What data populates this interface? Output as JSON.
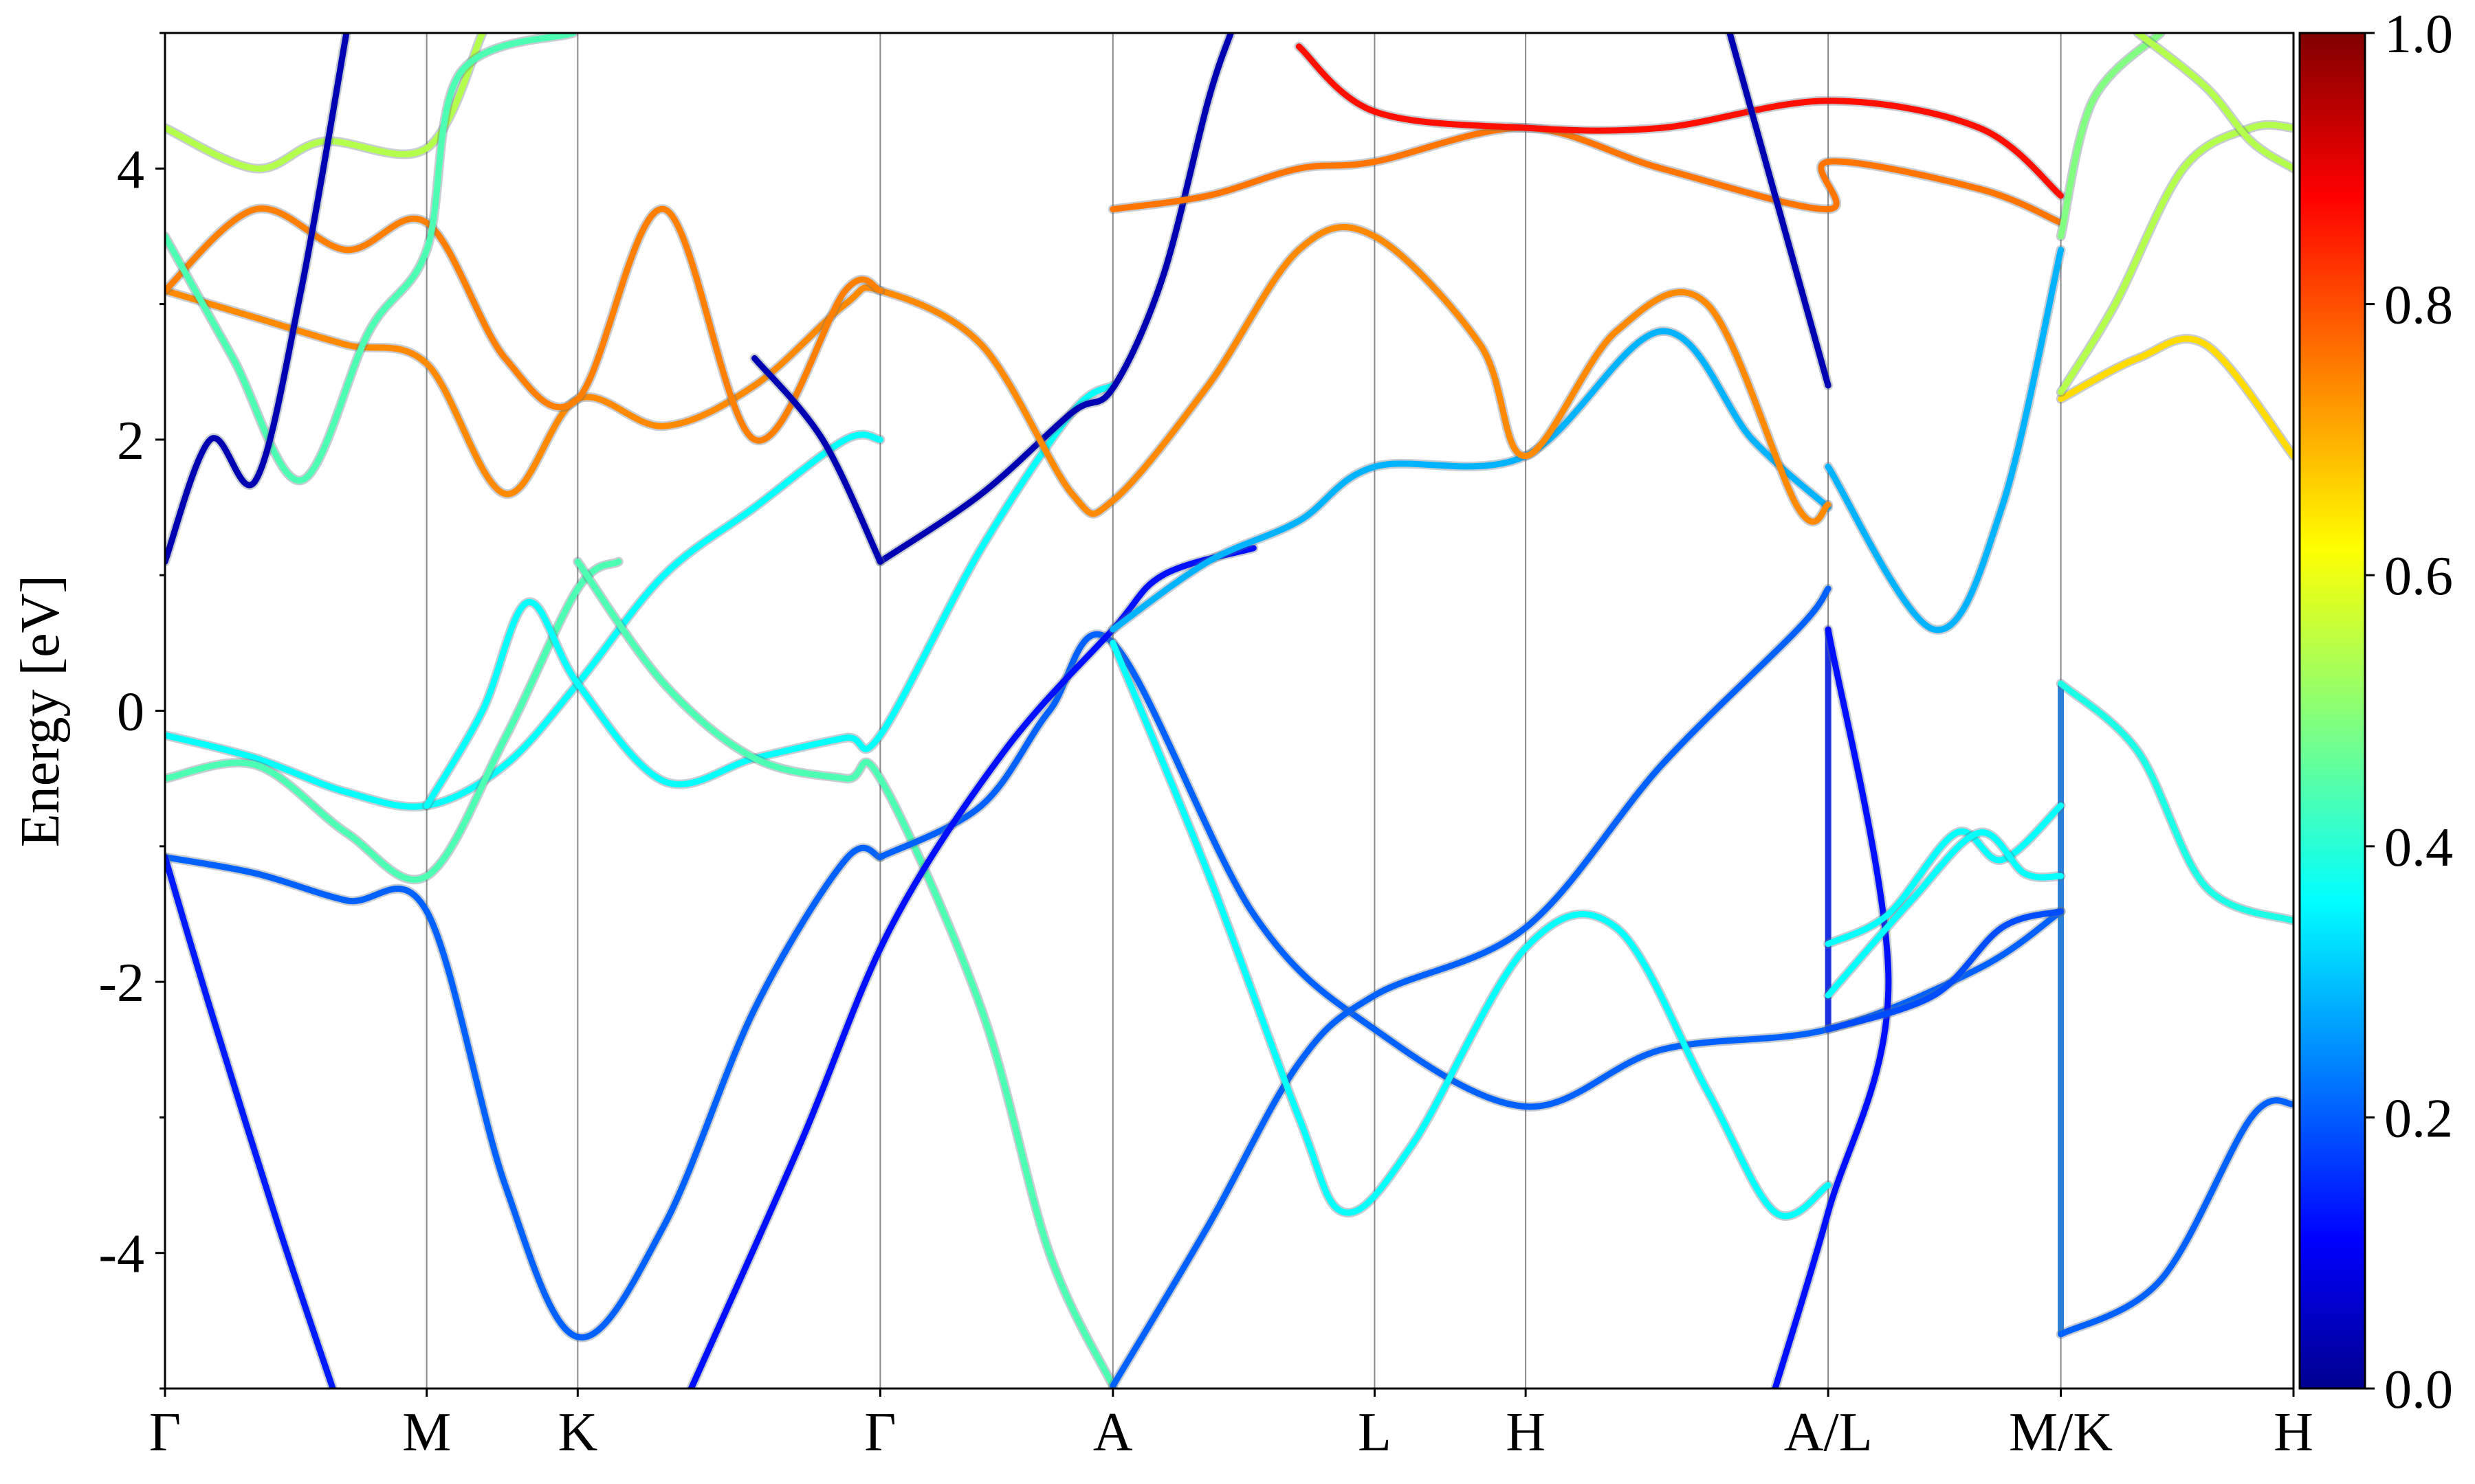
{
  "chart_data": {
    "type": "line",
    "title": "",
    "xlabel": "",
    "ylabel": "Energy [eV]",
    "ylim": [
      -5,
      5
    ],
    "grid": false,
    "legend": "none",
    "x_ticks": [
      {
        "label": "Γ",
        "x": 0.0
      },
      {
        "label": "M",
        "x": 0.577
      },
      {
        "label": "K",
        "x": 0.91
      },
      {
        "label": "Γ",
        "x": 1.577
      },
      {
        "label": "A",
        "x": 2.09
      },
      {
        "label": "L",
        "x": 2.667
      },
      {
        "label": "H",
        "x": 3.0
      },
      {
        "label": "A/L",
        "x": 3.667
      },
      {
        "label": "M/K",
        "x": 4.18
      },
      {
        "label": "H",
        "x": 4.693
      }
    ],
    "y_ticks": [
      -4,
      -2,
      0,
      2,
      4
    ],
    "colorbar": {
      "colormap": "jet",
      "range": [
        0.0,
        1.0
      ],
      "ticks": [
        "0.0",
        "0.2",
        "0.4",
        "0.6",
        "0.8",
        "1.0"
      ]
    },
    "series": [
      {
        "weight": 0.22,
        "points": [
          [
            0,
            -1.08
          ],
          [
            0.2,
            -1.2
          ],
          [
            0.4,
            -1.4
          ],
          [
            0.577,
            -1.48
          ],
          [
            0.75,
            -3.5
          ],
          [
            0.91,
            -4.62
          ],
          [
            1.1,
            -3.8
          ],
          [
            1.3,
            -2.2
          ],
          [
            1.5,
            -1.1
          ],
          [
            1.577,
            -1.08
          ]
        ]
      },
      {
        "weight": 0.15,
        "points": [
          [
            0,
            -1.08
          ],
          [
            0.1,
            -2.2
          ],
          [
            0.25,
            -3.8
          ],
          [
            0.37,
            -5.0
          ]
        ]
      },
      {
        "weight": 0.38,
        "points": [
          [
            0,
            -0.18
          ],
          [
            0.2,
            -0.35
          ],
          [
            0.4,
            -0.6
          ],
          [
            0.577,
            -0.7
          ],
          [
            0.75,
            -0.4
          ],
          [
            0.91,
            0.2
          ],
          [
            1.1,
            1.0
          ],
          [
            1.3,
            1.5
          ],
          [
            1.5,
            2.0
          ],
          [
            1.577,
            2.0
          ]
        ]
      },
      {
        "weight": 0.45,
        "points": [
          [
            0,
            -0.5
          ],
          [
            0.2,
            -0.4
          ],
          [
            0.4,
            -0.9
          ],
          [
            0.577,
            -1.22
          ],
          [
            0.75,
            -0.2
          ],
          [
            0.91,
            0.9
          ],
          [
            1.0,
            1.1
          ]
        ]
      },
      {
        "weight": 0.38,
        "points": [
          [
            0.577,
            -0.7
          ],
          [
            0.7,
            0.0
          ],
          [
            0.8,
            0.8
          ],
          [
            0.91,
            0.2
          ],
          [
            1.1,
            -0.52
          ],
          [
            1.3,
            -0.35
          ],
          [
            1.5,
            -0.2
          ],
          [
            1.577,
            -0.18
          ],
          [
            1.8,
            1.2
          ],
          [
            2.0,
            2.2
          ],
          [
            2.09,
            2.4
          ]
        ]
      },
      {
        "weight": 0.45,
        "points": [
          [
            0.91,
            1.1
          ],
          [
            1.1,
            0.2
          ],
          [
            1.3,
            -0.35
          ],
          [
            1.5,
            -0.5
          ],
          [
            1.577,
            -0.5
          ],
          [
            1.8,
            -2.2
          ],
          [
            1.95,
            -4.0
          ],
          [
            2.09,
            -4.98
          ]
        ]
      },
      {
        "weight": 0.22,
        "points": [
          [
            1.577,
            -1.08
          ],
          [
            1.8,
            -0.7
          ],
          [
            1.95,
            0.0
          ],
          [
            2.09,
            0.5
          ],
          [
            2.4,
            -1.5
          ],
          [
            2.667,
            -2.35
          ],
          [
            3.0,
            -2.92
          ],
          [
            3.3,
            -2.5
          ],
          [
            3.667,
            -2.35
          ],
          [
            4.0,
            -1.9
          ],
          [
            4.18,
            -1.48
          ]
        ]
      },
      {
        "weight": 0.14,
        "points": [
          [
            1.16,
            -5.0
          ],
          [
            1.4,
            -3.2
          ],
          [
            1.6,
            -1.6
          ],
          [
            1.85,
            -0.3
          ],
          [
            2.09,
            0.6
          ],
          [
            2.2,
            1.0
          ],
          [
            2.4,
            1.2
          ]
        ]
      },
      {
        "weight": 0.22,
        "points": [
          [
            2.09,
            -4.98
          ],
          [
            2.3,
            -3.8
          ],
          [
            2.5,
            -2.6
          ],
          [
            2.667,
            -2.1
          ],
          [
            3.0,
            -1.6
          ],
          [
            3.3,
            -0.4
          ],
          [
            3.6,
            0.6
          ],
          [
            3.667,
            0.9
          ]
        ]
      },
      {
        "weight": 0.38,
        "points": [
          [
            2.09,
            0.5
          ],
          [
            2.3,
            -1.2
          ],
          [
            2.5,
            -3.0
          ],
          [
            2.6,
            -3.7
          ],
          [
            2.75,
            -3.2
          ],
          [
            3.0,
            -1.75
          ],
          [
            3.2,
            -1.6
          ],
          [
            3.4,
            -2.8
          ],
          [
            3.55,
            -3.7
          ],
          [
            3.667,
            -3.5
          ]
        ]
      },
      {
        "weight": 0.3,
        "points": [
          [
            2.09,
            0.6
          ],
          [
            2.3,
            1.1
          ],
          [
            2.5,
            1.4
          ],
          [
            2.667,
            1.8
          ],
          [
            3.0,
            1.88
          ],
          [
            3.3,
            2.8
          ],
          [
            3.5,
            2.0
          ],
          [
            3.667,
            1.5
          ]
        ]
      },
      {
        "weight": 0.05,
        "points": [
          [
            1.577,
            1.1
          ],
          [
            1.8,
            1.6
          ],
          [
            2.0,
            2.2
          ],
          [
            2.09,
            2.38
          ],
          [
            2.2,
            3.2
          ],
          [
            2.3,
            4.5
          ],
          [
            2.35,
            5.0
          ]
        ]
      },
      {
        "weight": 0.74,
        "points": [
          [
            0,
            3.1
          ],
          [
            0.2,
            2.9
          ],
          [
            0.4,
            2.7
          ],
          [
            0.577,
            2.56
          ],
          [
            0.75,
            1.6
          ],
          [
            0.91,
            2.3
          ],
          [
            1.1,
            2.1
          ],
          [
            1.3,
            2.4
          ],
          [
            1.5,
            3.0
          ],
          [
            1.577,
            3.1
          ],
          [
            1.8,
            2.7
          ],
          [
            2.0,
            1.6
          ],
          [
            2.09,
            1.55
          ],
          [
            2.3,
            2.4
          ],
          [
            2.5,
            3.4
          ],
          [
            2.667,
            3.5
          ],
          [
            2.9,
            2.7
          ],
          [
            3.0,
            1.88
          ],
          [
            3.2,
            2.8
          ],
          [
            3.4,
            3.0
          ],
          [
            3.6,
            1.5
          ],
          [
            3.667,
            1.52
          ]
        ]
      },
      {
        "weight": 0.75,
        "points": [
          [
            0,
            3.1
          ],
          [
            0.2,
            3.7
          ],
          [
            0.4,
            3.4
          ],
          [
            0.577,
            3.6
          ],
          [
            0.75,
            2.6
          ],
          [
            0.91,
            2.3
          ],
          [
            1.1,
            3.7
          ],
          [
            1.3,
            2.0
          ],
          [
            1.5,
            3.1
          ],
          [
            1.577,
            3.1
          ]
        ]
      },
      {
        "weight": 0.76,
        "points": [
          [
            2.09,
            3.7
          ],
          [
            2.3,
            3.8
          ],
          [
            2.5,
            4.0
          ],
          [
            2.667,
            4.05
          ],
          [
            3.0,
            4.3
          ],
          [
            3.3,
            4.0
          ],
          [
            3.667,
            3.7
          ],
          [
            3.667,
            4.05
          ],
          [
            4.0,
            3.85
          ],
          [
            4.18,
            3.6
          ]
        ]
      },
      {
        "weight": 0.86,
        "points": [
          [
            2.5,
            4.9
          ],
          [
            2.667,
            4.42
          ],
          [
            3.0,
            4.3
          ],
          [
            3.3,
            4.3
          ],
          [
            3.667,
            4.5
          ],
          [
            4.0,
            4.3
          ],
          [
            4.18,
            3.8
          ]
        ]
      },
      {
        "weight": 0.55,
        "points": [
          [
            0,
            4.3
          ],
          [
            0.2,
            4.0
          ],
          [
            0.35,
            4.2
          ],
          [
            0.577,
            4.15
          ],
          [
            0.7,
            5.0
          ]
        ]
      },
      {
        "weight": 0.45,
        "points": [
          [
            0,
            3.5
          ],
          [
            0.15,
            2.6
          ],
          [
            0.3,
            1.7
          ],
          [
            0.45,
            2.8
          ],
          [
            0.577,
            3.4
          ],
          [
            0.65,
            4.7
          ],
          [
            0.9,
            5.0
          ]
        ]
      },
      {
        "weight": 0.05,
        "points": [
          [
            0,
            1.1
          ],
          [
            0.1,
            2.0
          ],
          [
            0.2,
            1.7
          ],
          [
            0.3,
            3.1
          ],
          [
            0.4,
            5.0
          ]
        ]
      },
      {
        "weight": 0.05,
        "points": [
          [
            1.3,
            2.6
          ],
          [
            1.45,
            2.0
          ],
          [
            1.577,
            1.1
          ]
        ]
      },
      {
        "weight": 0.05,
        "points": [
          [
            3.45,
            5.0
          ],
          [
            3.55,
            3.8
          ],
          [
            3.667,
            2.4
          ]
        ]
      },
      {
        "weight": 0.14,
        "points": [
          [
            3.55,
            -5.0
          ],
          [
            3.667,
            -3.7
          ],
          [
            3.8,
            -2.0
          ],
          [
            3.667,
            0.6
          ]
        ]
      },
      {
        "weight": 0.3,
        "points": [
          [
            3.667,
            1.8
          ],
          [
            3.9,
            0.6
          ],
          [
            4.05,
            1.5
          ],
          [
            4.18,
            3.4
          ]
        ]
      },
      {
        "weight": 0.38,
        "points": [
          [
            3.667,
            -1.72
          ],
          [
            3.8,
            -1.5
          ],
          [
            3.95,
            -0.9
          ],
          [
            4.05,
            -1.1
          ],
          [
            4.18,
            -0.7
          ]
        ]
      },
      {
        "weight": 0.38,
        "points": [
          [
            3.667,
            -2.1
          ],
          [
            3.85,
            -1.4
          ],
          [
            4.0,
            -0.9
          ],
          [
            4.1,
            -1.2
          ],
          [
            4.18,
            -1.22
          ]
        ]
      },
      {
        "weight": 0.2,
        "points": [
          [
            3.667,
            -2.35
          ],
          [
            3.9,
            -2.1
          ],
          [
            4.05,
            -1.6
          ],
          [
            4.18,
            -1.48
          ]
        ]
      },
      {
        "weight": 0.22,
        "points": [
          [
            4.18,
            -4.6
          ],
          [
            4.4,
            -4.2
          ],
          [
            4.6,
            -3.0
          ],
          [
            4.693,
            -2.9
          ]
        ]
      },
      {
        "weight": 0.4,
        "points": [
          [
            4.18,
            0.2
          ],
          [
            4.35,
            -0.3
          ],
          [
            4.5,
            -1.3
          ],
          [
            4.693,
            -1.55
          ]
        ]
      },
      {
        "weight": 0.66,
        "points": [
          [
            4.18,
            2.3
          ],
          [
            4.35,
            2.6
          ],
          [
            4.5,
            2.7
          ],
          [
            4.693,
            1.88
          ]
        ]
      },
      {
        "weight": 0.55,
        "points": [
          [
            4.18,
            2.35
          ],
          [
            4.3,
            3.0
          ],
          [
            4.45,
            4.0
          ],
          [
            4.6,
            4.3
          ],
          [
            4.693,
            4.3
          ]
        ]
      },
      {
        "weight": 0.5,
        "points": [
          [
            4.18,
            3.5
          ],
          [
            4.25,
            4.5
          ],
          [
            4.4,
            5.0
          ]
        ]
      },
      {
        "weight": 0.55,
        "points": [
          [
            4.35,
            5.0
          ],
          [
            4.5,
            4.6
          ],
          [
            4.6,
            4.2
          ],
          [
            4.693,
            4.0
          ]
        ]
      }
    ],
    "vertical_lines": [
      3.667,
      4.18
    ]
  }
}
